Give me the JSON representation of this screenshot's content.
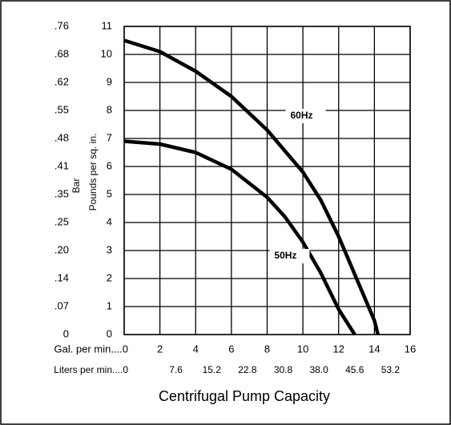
{
  "chart_data": {
    "type": "line",
    "title": "Centrifugal Pump Capacity",
    "y_label": "Pounds per sq. in.",
    "y_alt_label": "Bar",
    "xlim": [
      0,
      16
    ],
    "ylim": [
      0,
      11
    ],
    "xticks": [
      {
        "value": 0,
        "label": "Gal. per min....0"
      },
      2,
      4,
      6,
      8,
      10,
      12,
      14,
      16
    ],
    "x_alt_ticks": [
      {
        "value": 0,
        "label": "Liters per min....0"
      },
      {
        "value": 2,
        "label": "7.6"
      },
      {
        "value": 4,
        "label": "15.2"
      },
      {
        "value": 6,
        "label": "22.8"
      },
      {
        "value": 8,
        "label": "30.8"
      },
      {
        "value": 10,
        "label": "38.0"
      },
      {
        "value": 12,
        "label": "45.6"
      },
      {
        "value": 14,
        "label": "53.2"
      }
    ],
    "yticks": [
      0,
      1,
      2,
      3,
      4,
      5,
      6,
      7,
      8,
      9,
      10,
      11
    ],
    "y_alt_ticks": [
      {
        "value": 0,
        "label": "0"
      },
      {
        "value": 1,
        "label": ".07"
      },
      {
        "value": 2,
        "label": ".14"
      },
      {
        "value": 3,
        "label": ".20"
      },
      {
        "value": 4,
        "label": ".25"
      },
      {
        "value": 5,
        "label": ".35"
      },
      {
        "value": 6,
        "label": ".41"
      },
      {
        "value": 7,
        "label": ".48"
      },
      {
        "value": 8,
        "label": ".55"
      },
      {
        "value": 9,
        "label": ".62"
      },
      {
        "value": 10,
        "label": ".68"
      },
      {
        "value": 11,
        "label": ".76"
      }
    ],
    "grid": true,
    "series": [
      {
        "name": "60Hz",
        "color": "#000000",
        "x": [
          0,
          2,
          4,
          6,
          8,
          10,
          11,
          12,
          13,
          14,
          14.2
        ],
        "values": [
          10.5,
          10.1,
          9.4,
          8.5,
          7.3,
          5.8,
          4.8,
          3.5,
          2.0,
          0.5,
          0
        ],
        "label_at": [
          9.3,
          7.8
        ]
      },
      {
        "name": "50Hz",
        "color": "#000000",
        "x": [
          0,
          2,
          4,
          6,
          8,
          9,
          10,
          11,
          12,
          12.9
        ],
        "values": [
          6.9,
          6.8,
          6.5,
          5.9,
          4.9,
          4.2,
          3.3,
          2.2,
          0.9,
          0
        ],
        "label_at": [
          8.4,
          2.8
        ]
      }
    ]
  }
}
